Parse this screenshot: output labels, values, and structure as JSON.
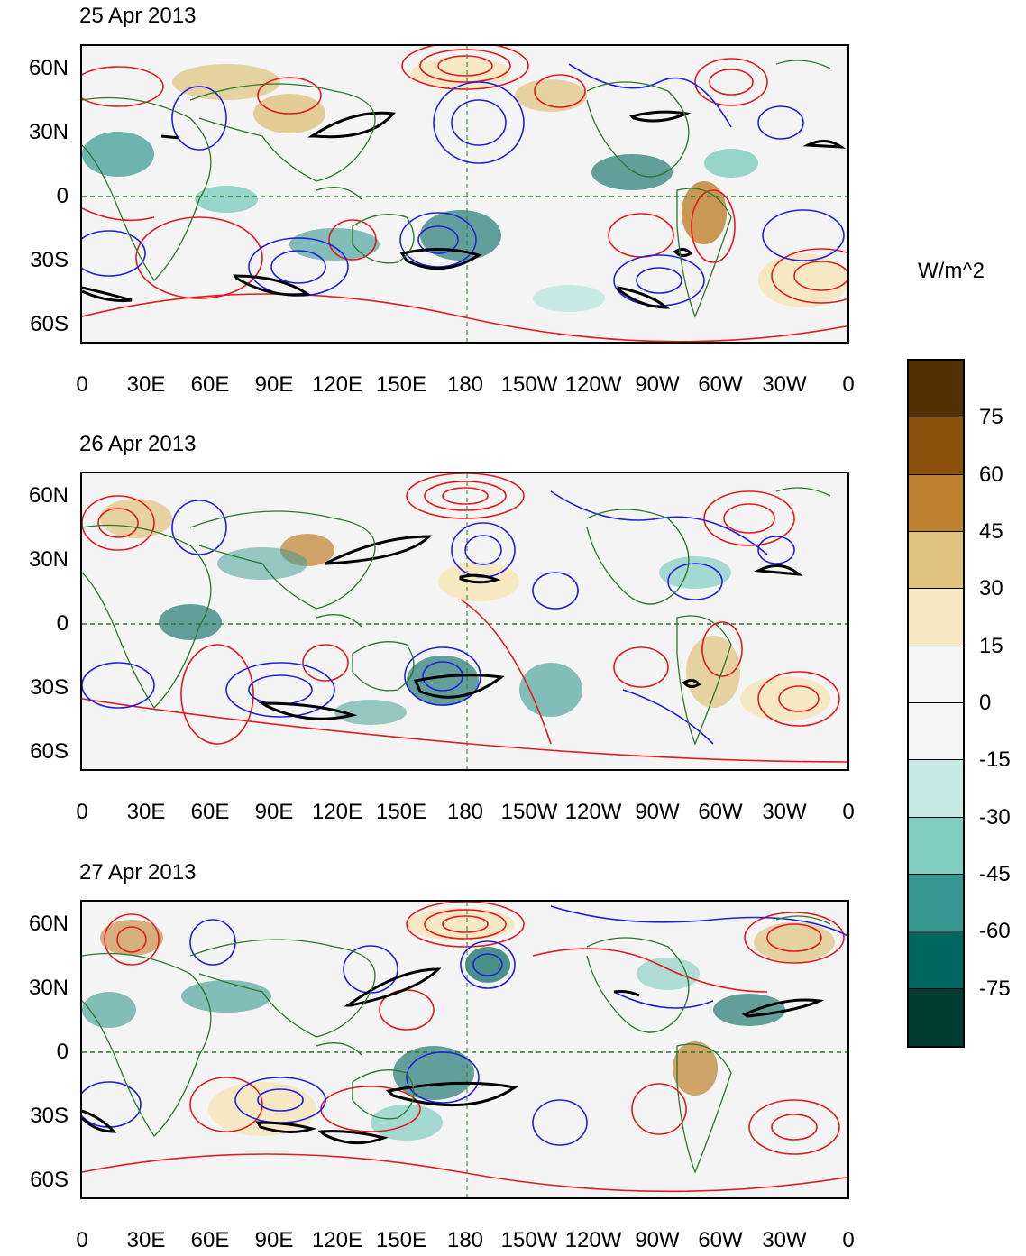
{
  "units": "W/m^2",
  "panels": [
    {
      "title": "25 Apr 2013"
    },
    {
      "title": "26 Apr 2013"
    },
    {
      "title": "27 Apr 2013"
    }
  ],
  "lat_ticks": [
    "60N",
    "30N",
    "0",
    "30S",
    "60S"
  ],
  "lon_ticks": [
    "0",
    "30E",
    "60E",
    "90E",
    "120E",
    "150E",
    "180",
    "150W",
    "120W",
    "90W",
    "60W",
    "30W",
    "0"
  ],
  "colorbar": {
    "levels": [
      "75",
      "60",
      "45",
      "30",
      "15",
      "0",
      "-15",
      "-30",
      "-45",
      "-60",
      "-75"
    ],
    "colors": [
      "#543005",
      "#8c510a",
      "#bf812d",
      "#dfc27d",
      "#f6e8c3",
      "#f5f5f5",
      "#f5f5f5",
      "#c7eae5",
      "#80cdc1",
      "#35978f",
      "#01665e",
      "#003c30"
    ]
  },
  "contour_colors": {
    "positive": "#e41a1c",
    "negative": "#1f1fe0",
    "outline": "#000000",
    "coast": "#2a7a2a"
  }
}
